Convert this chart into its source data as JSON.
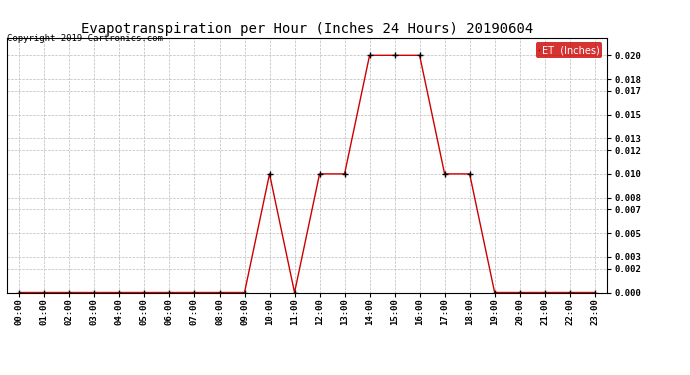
{
  "title": "Evapotranspiration per Hour (Inches 24 Hours) 20190604",
  "copyright": "Copyright 2019 Cartronics.com",
  "legend_label": "ET  (Inches)",
  "hours": [
    "00:00",
    "01:00",
    "02:00",
    "03:00",
    "04:00",
    "05:00",
    "06:00",
    "07:00",
    "08:00",
    "09:00",
    "10:00",
    "11:00",
    "12:00",
    "13:00",
    "14:00",
    "15:00",
    "16:00",
    "17:00",
    "18:00",
    "19:00",
    "20:00",
    "21:00",
    "22:00",
    "23:00"
  ],
  "values": [
    0.0,
    0.0,
    0.0,
    0.0,
    0.0,
    0.0,
    0.0,
    0.0,
    0.0,
    0.0,
    0.01,
    0.0,
    0.01,
    0.01,
    0.02,
    0.02,
    0.02,
    0.01,
    0.01,
    0.0,
    0.0,
    0.0,
    0.0,
    0.0
  ],
  "line_color": "#cc0000",
  "marker_color": "#000000",
  "bg_color": "#ffffff",
  "grid_color": "#bbbbbb",
  "ylim": [
    0.0,
    0.0215
  ],
  "yticks": [
    0.0,
    0.002,
    0.003,
    0.005,
    0.007,
    0.008,
    0.01,
    0.012,
    0.013,
    0.015,
    0.017,
    0.018,
    0.02
  ],
  "title_fontsize": 10,
  "copyright_fontsize": 6.5,
  "tick_fontsize": 6.5,
  "legend_bg": "#cc0000",
  "legend_text_color": "#ffffff",
  "legend_fontsize": 7
}
